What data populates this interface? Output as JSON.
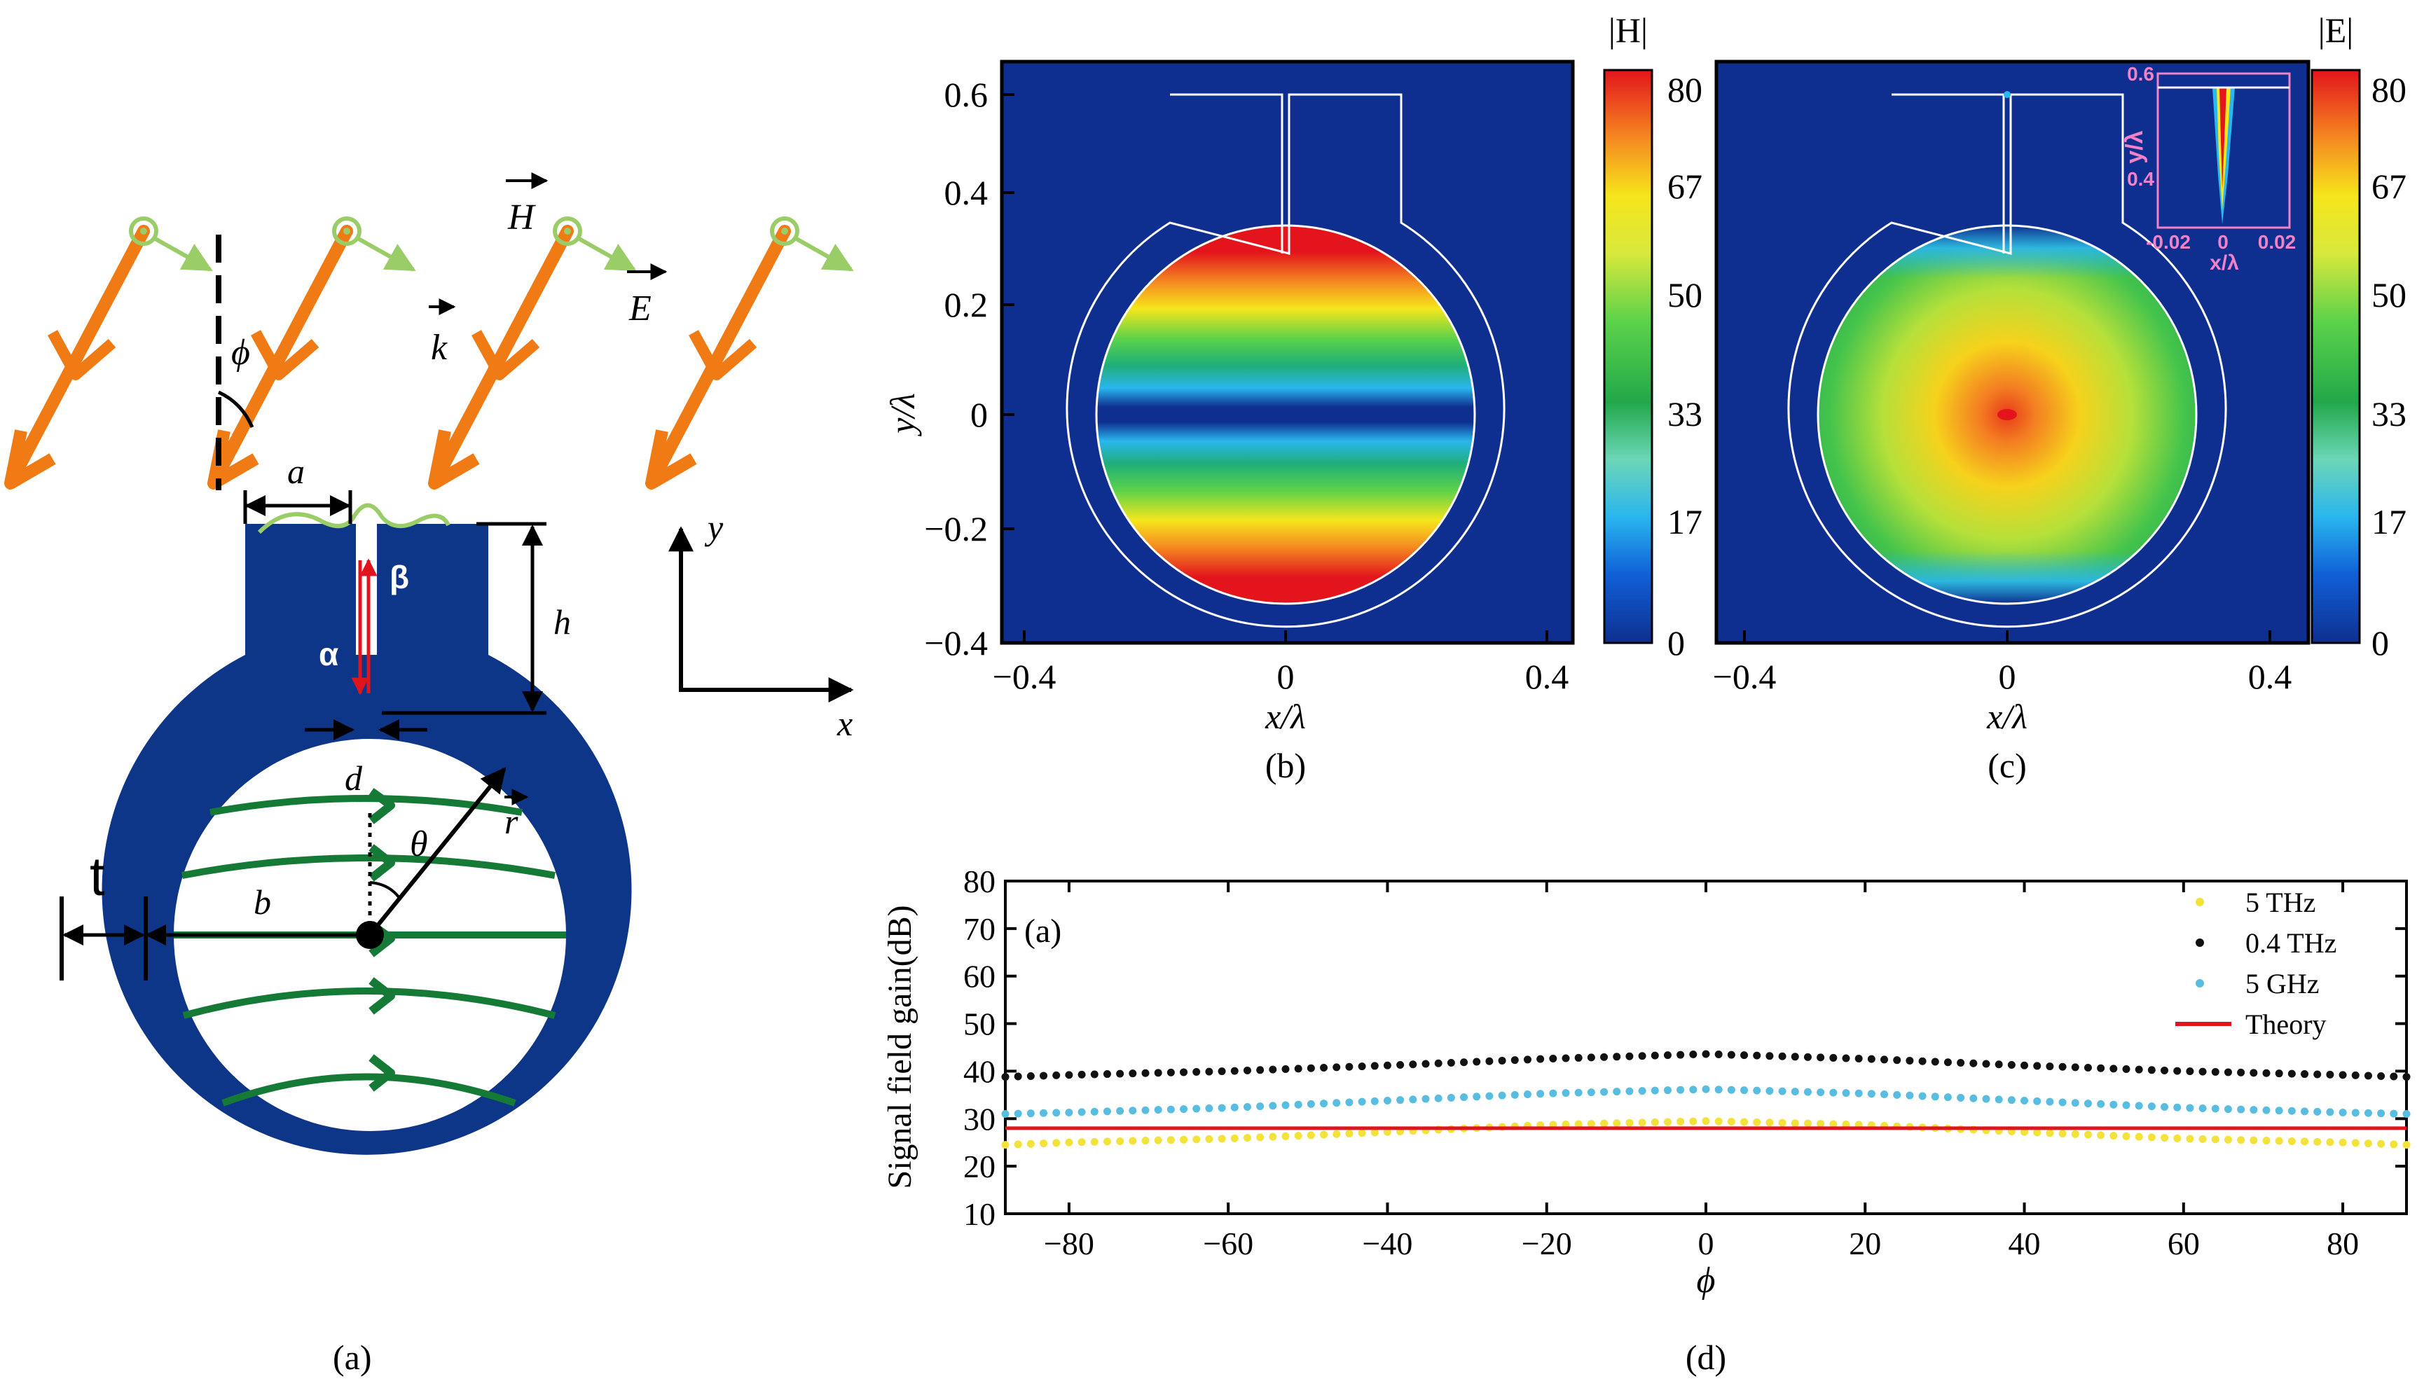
{
  "colors": {
    "navy": "#0e3688",
    "arrow_orange": "#f07a14",
    "field_green": "#9acd68",
    "line_green": "#157a35",
    "theory_red": "#e0141c",
    "dot_yellow": "#f2e239",
    "dot_black": "#111111",
    "dot_cyan": "#58bde0",
    "inset_pink": "#f082c8"
  },
  "panel_a": {
    "caption": "(a)",
    "label_H": "H",
    "label_k": "k",
    "label_E": "E",
    "label_phi": "ϕ",
    "label_a": "a",
    "label_h": "h",
    "label_alpha": "α",
    "label_beta": "β",
    "label_d": "d",
    "label_r": "r",
    "label_theta": "θ",
    "label_b": "b",
    "label_t": "t",
    "axis_y": "y",
    "axis_x": "x"
  },
  "panel_b": {
    "caption": "(b)",
    "colorbar_title": "|H|",
    "xlabel": "x/λ",
    "ylabel": "y/λ",
    "x_ticks": [
      "−0.4",
      "0",
      "0.4"
    ],
    "y_ticks": [
      "0.6",
      "0.4",
      "0.2",
      "0",
      "−0.2",
      "−0.4"
    ],
    "colorbar_ticks": [
      "80",
      "67",
      "50",
      "33",
      "17",
      "0"
    ]
  },
  "panel_c": {
    "caption": "(c)",
    "colorbar_title": "|E|",
    "xlabel": "x/λ",
    "x_ticks": [
      "−0.4",
      "0",
      "0.4"
    ],
    "colorbar_ticks": [
      "80",
      "67",
      "50",
      "33",
      "17",
      "0"
    ],
    "inset": {
      "ylabel": "y/λ",
      "xlabel": "x/λ",
      "y_ticks": [
        "0.6",
        "0.4"
      ],
      "x_ticks": [
        "-0.02",
        "0",
        "0.02"
      ]
    }
  },
  "panel_d": {
    "caption": "(d)",
    "inner_label": "(a)",
    "chart_data": {
      "type": "scatter",
      "ylabel": "Signal field gain(dB)",
      "xlabel": "ϕ",
      "xlim": [
        -88,
        88
      ],
      "ylim": [
        10,
        80
      ],
      "x_ticks": [
        -80,
        -60,
        -40,
        -20,
        0,
        20,
        40,
        60,
        80
      ],
      "y_ticks": [
        10,
        20,
        30,
        40,
        50,
        60,
        70,
        80
      ],
      "x_tick_labels": [
        "−80",
        "−60",
        "−40",
        "−20",
        "0",
        "20",
        "40",
        "60",
        "80"
      ],
      "y_tick_labels": [
        "10",
        "20",
        "30",
        "40",
        "50",
        "60",
        "70",
        "80"
      ],
      "grid": false,
      "legend_position": "top-right",
      "series": [
        {
          "name": "5 THz",
          "kind": "dots",
          "color": "#f2e239",
          "x": [
            -88,
            -80,
            -60,
            -40,
            -20,
            0,
            20,
            40,
            60,
            80,
            88
          ],
          "y": [
            24.5,
            25,
            25.8,
            27.2,
            28.7,
            29.5,
            28.7,
            27.2,
            25.8,
            25,
            24.5
          ]
        },
        {
          "name": "0.4 THz",
          "kind": "dots",
          "color": "#111111",
          "x": [
            -88,
            -80,
            -60,
            -40,
            -20,
            0,
            20,
            40,
            60,
            80,
            88
          ],
          "y": [
            38.8,
            39.2,
            40,
            41.2,
            42.6,
            43.6,
            42.6,
            41.2,
            40,
            39.2,
            38.8
          ]
        },
        {
          "name": "5 GHz",
          "kind": "dots",
          "color": "#58bde0",
          "x": [
            -88,
            -80,
            -60,
            -40,
            -20,
            0,
            20,
            40,
            60,
            80,
            88
          ],
          "y": [
            31,
            31.3,
            32.3,
            33.8,
            35.3,
            36.2,
            35.3,
            33.8,
            32.3,
            31.3,
            31
          ]
        },
        {
          "name": "Theory",
          "kind": "line",
          "color": "#e0141c",
          "x": [
            -88,
            88
          ],
          "y": [
            28,
            28
          ]
        }
      ]
    }
  }
}
